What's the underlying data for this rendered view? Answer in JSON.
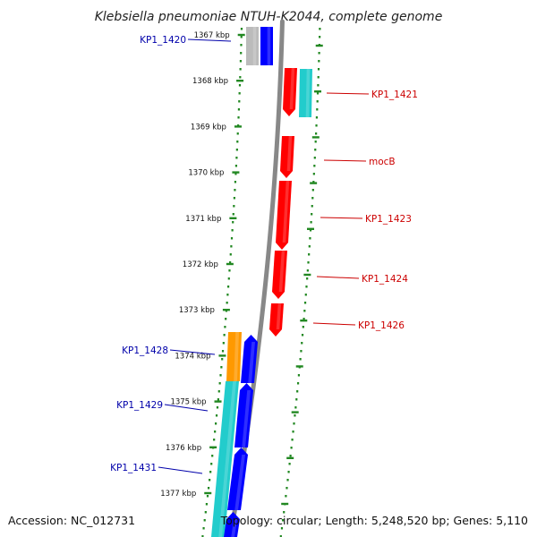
{
  "title": "Klebsiella pneumoniae NTUH-K2044, complete genome",
  "footer": {
    "accession": "Accession: NC_012731",
    "topology": "Topology: circular; Length: 5,248,520 bp; Genes: 5,110"
  },
  "ticks": [
    "1367 kbp",
    "1368 kbp",
    "1369 kbp",
    "1370 kbp",
    "1371 kbp",
    "1372 kbp",
    "1373 kbp",
    "1374 kbp",
    "1375 kbp",
    "1376 kbp",
    "1377 kbp"
  ],
  "colors": {
    "forward": "#0000ff",
    "reverse": "#ff0000",
    "rna": "#22cccc",
    "other": "#ff9900",
    "pseudo": "#bbbbbb",
    "backbone": "#888888",
    "dots": "#228822",
    "label_forward": "#0000aa",
    "label_reverse": "#cc0000"
  },
  "labels_forward": [
    {
      "name": "KP1_1420"
    },
    {
      "name": "KP1_1428"
    },
    {
      "name": "KP1_1429"
    },
    {
      "name": "KP1_1431"
    }
  ],
  "labels_reverse": [
    {
      "name": "KP1_1421"
    },
    {
      "name": "mocB"
    },
    {
      "name": "KP1_1423"
    },
    {
      "name": "KP1_1424"
    },
    {
      "name": "KP1_1426"
    }
  ]
}
